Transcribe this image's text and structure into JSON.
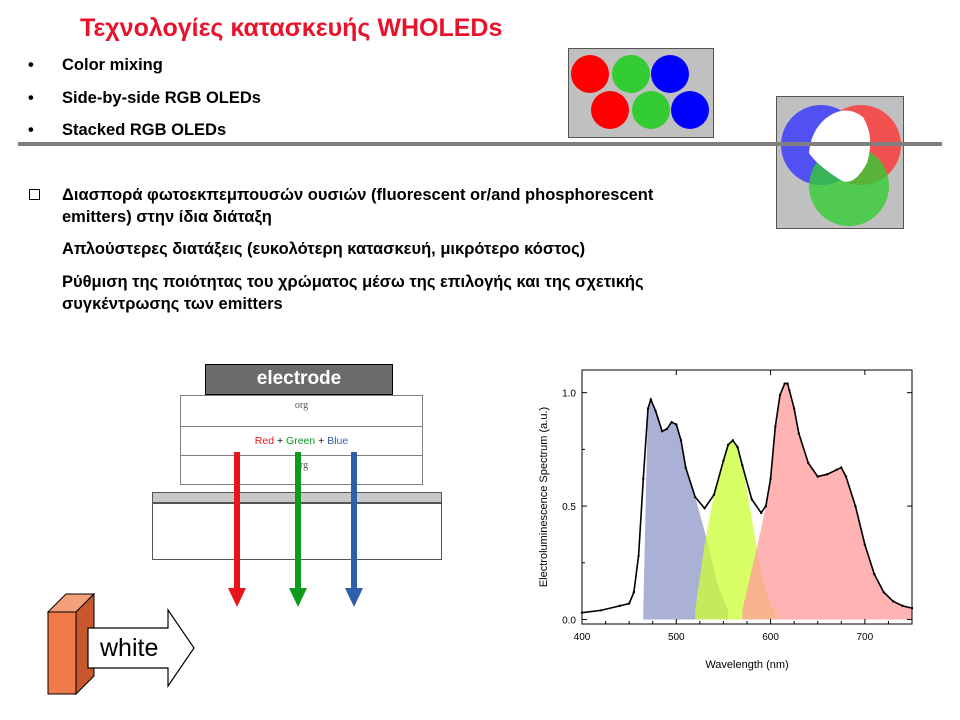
{
  "title": "Τεχνολογίες κατασκευής WHOLEDs",
  "bullets": [
    {
      "symbol": "•",
      "text": "Color mixing"
    },
    {
      "symbol": "•",
      "text": "Side-by-side RGB OLEDs"
    },
    {
      "symbol": "•",
      "text": "Stacked RGB OLEDs"
    }
  ],
  "paragraphs": {
    "p1_line1": "Διασπορά φωτοεκπεμπουσών ουσιών (fluorescent or/and phosphorescent",
    "p1_line2": "emitters) στην ίδια διάταξη",
    "p2": "Απλούστερες διατάξεις (ευκολότερη κατασκευή, μικρότερο κόστος)",
    "p3_line1": "Ρύθμιση της ποιότητας του χρώματος μέσω της επιλογής και της σχετικής",
    "p3_line2": "συγκέντρωσης των emitters"
  },
  "device": {
    "electrode_label": "electrode",
    "layer_top": "org",
    "layer_middle": {
      "red": "Red",
      "plus1": "+",
      "green": "Green",
      "plus2": "+",
      "blue": "Blue"
    },
    "layer_bottom": "org",
    "arrow_colors": [
      "#e8141c",
      "#0e9a1f",
      "#2f5fab"
    ],
    "white_label": "white"
  },
  "colors": {
    "title": "#e8132b",
    "red": "#ff0000",
    "green": "#33cc33",
    "blue": "#0000ff",
    "gray_box": "#c0c0c0"
  },
  "chart_data": {
    "type": "line",
    "xlabel": "Wavelength (nm)",
    "ylabel": "Electroluminescence Spectrum (a.u.)",
    "xlim": [
      400,
      750
    ],
    "ylim": [
      -0.02,
      1.1
    ],
    "x_ticks": [
      "400",
      "500",
      "600",
      "700"
    ],
    "y_ticks": [
      "0.0",
      "0.5",
      "1.0"
    ],
    "grid": false,
    "series": [
      {
        "type": "line",
        "color": "#000000",
        "x": [
          400,
          420,
          440,
          450,
          455,
          460,
          465,
          470,
          473,
          478,
          485,
          490,
          495,
          500,
          505,
          510,
          520,
          530,
          540,
          550,
          555,
          560,
          565,
          570,
          580,
          590,
          595,
          600,
          605,
          610,
          615,
          618,
          620,
          625,
          630,
          640,
          650,
          660,
          670,
          675,
          680,
          690,
          700,
          710,
          720,
          730,
          740,
          750
        ],
        "y": [
          0.03,
          0.04,
          0.06,
          0.07,
          0.12,
          0.28,
          0.62,
          0.93,
          0.97,
          0.92,
          0.83,
          0.84,
          0.87,
          0.86,
          0.79,
          0.67,
          0.54,
          0.49,
          0.55,
          0.7,
          0.77,
          0.79,
          0.76,
          0.68,
          0.53,
          0.47,
          0.5,
          0.62,
          0.85,
          0.99,
          1.04,
          1.04,
          1.01,
          0.93,
          0.82,
          0.69,
          0.63,
          0.64,
          0.66,
          0.67,
          0.63,
          0.5,
          0.33,
          0.2,
          0.12,
          0.08,
          0.06,
          0.05
        ]
      },
      {
        "type": "area",
        "color": "#8f97c8",
        "x": [
          465,
          468,
          470,
          473,
          478,
          485,
          490,
          495,
          500,
          505,
          510,
          520,
          530,
          545,
          555
        ],
        "y": [
          0.04,
          0.6,
          0.93,
          0.97,
          0.92,
          0.83,
          0.84,
          0.87,
          0.86,
          0.79,
          0.67,
          0.54,
          0.39,
          0.14,
          0.04
        ]
      },
      {
        "type": "area",
        "color": "#ccff33",
        "x": [
          520,
          530,
          540,
          550,
          555,
          560,
          565,
          570,
          580,
          590,
          600,
          605
        ],
        "y": [
          0.04,
          0.33,
          0.55,
          0.7,
          0.77,
          0.79,
          0.76,
          0.68,
          0.45,
          0.2,
          0.06,
          0.04
        ]
      },
      {
        "type": "area",
        "color": "#ff9999",
        "x": [
          570,
          590,
          595,
          600,
          605,
          610,
          615,
          618,
          620,
          625,
          630,
          640,
          650,
          660,
          670,
          675,
          680,
          690,
          700,
          710,
          720,
          730,
          740,
          750
        ],
        "y": [
          0.04,
          0.4,
          0.5,
          0.62,
          0.85,
          0.99,
          1.04,
          1.04,
          1.01,
          0.93,
          0.82,
          0.69,
          0.63,
          0.64,
          0.66,
          0.67,
          0.63,
          0.5,
          0.33,
          0.2,
          0.12,
          0.08,
          0.06,
          0.05
        ]
      }
    ]
  }
}
